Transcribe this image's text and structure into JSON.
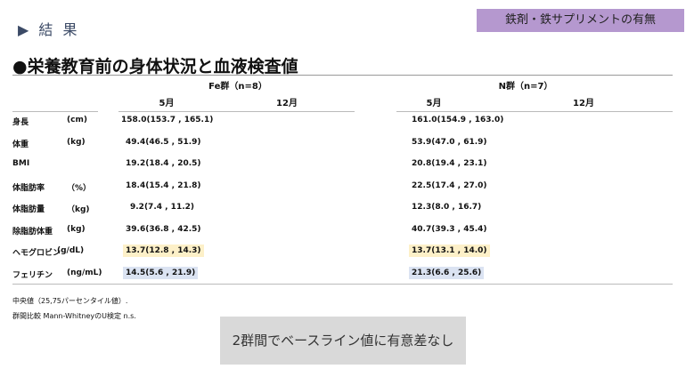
{
  "section": "▶ 結 果",
  "badge": "鉄剤・鉄サプリメントの有無",
  "title": "●栄養教育前の身体状況と血液検査値",
  "groups": [
    {
      "name": "Fe群（n=8）",
      "months": [
        "5月",
        "12月"
      ]
    },
    {
      "name": "N群（n=7）",
      "months": [
        "5月",
        "12月"
      ]
    }
  ],
  "rows": [
    {
      "label": "身長",
      "unit": "(cm)",
      "fe": "158.0(153.7 , 165.1)",
      "n": "161.0(154.9 , 163.0)"
    },
    {
      "label": "体重",
      "unit": "(kg)",
      "fe": "49.4(46.5 , 51.9)",
      "n": "53.9(47.0 , 61.9)"
    },
    {
      "label": "BMI",
      "unit": "",
      "fe": "19.2(18.4 , 20.5)",
      "n": "20.8(19.4 , 23.1)"
    },
    {
      "label": "体脂肪率",
      "unit": "（%）",
      "fe": "18.4(15.4 , 21.8)",
      "n": "22.5(17.4 , 27.0)"
    },
    {
      "label": "体脂肪量",
      "unit": "（kg)",
      "fe": "9.2(7.4 , 11.2)",
      "n": "12.3(8.0 , 16.7)"
    },
    {
      "label": "除脂肪体重",
      "unit": "(kg)",
      "fe": "39.6(36.8 , 42.5)",
      "n": "40.7(39.3 , 45.4)"
    },
    {
      "label": "ヘモグロビン",
      "unit": "(g/dL)",
      "fe": "13.7(12.8 , 14.3)",
      "n": "13.7(13.1 , 14.0)"
    },
    {
      "label": "フェリチン",
      "unit": "(ng/mL)",
      "fe": "14.5(5.6 , 21.9)",
      "n": "21.3(6.6 , 25.6)"
    }
  ],
  "highlight_colors": {
    "hemoglobin": "#fdf0c8",
    "ferritin": "#dbe3f2"
  },
  "notes": [
    "中央値（25,75パーセンタイル値）.",
    "群間比較  Mann-WhitneyのU検定 n.s."
  ],
  "conclusion": "2群間でベースライン値に有意差なし"
}
